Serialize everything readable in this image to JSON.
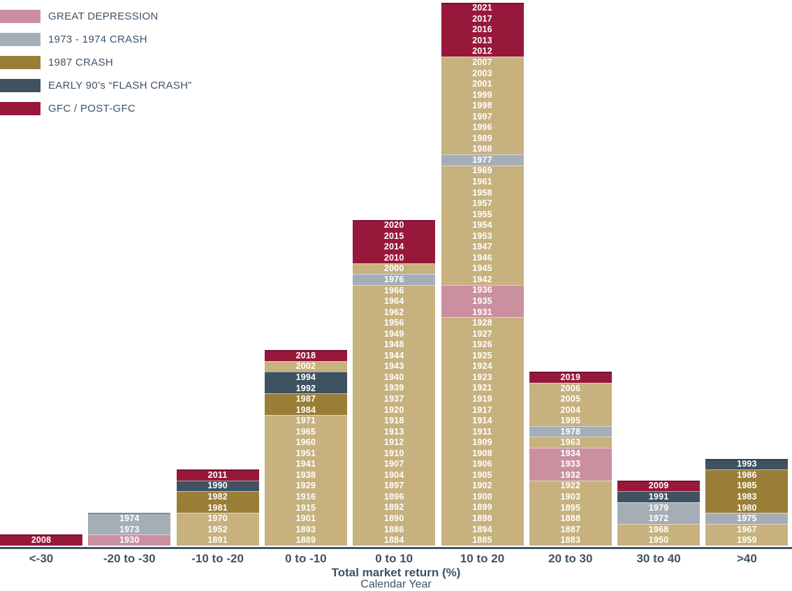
{
  "chart_data": {
    "type": "bar",
    "subtype": "stacked histogram, one cell per calendar year",
    "title": "",
    "xlabel": "Total market return (%)",
    "xlabel2": "Calendar Year",
    "ylabel": "",
    "grid": false,
    "legend_position": "top-left",
    "palette": {
      "base": "#C7B17E",
      "depression": "#CA90A0",
      "crash7374": "#A5AEB6",
      "crash87": "#9A7D37",
      "flash90s": "#3E5261",
      "gfc": "#97183A"
    },
    "text_color": "#3C5466",
    "legend": [
      {
        "key": "depression",
        "label": "GREAT DEPRESSION"
      },
      {
        "key": "crash7374",
        "label": "1973 - 1974 CRASH"
      },
      {
        "key": "crash87",
        "label": "1987 CRASH"
      },
      {
        "key": "flash90s",
        "label": "EARLY 90’s “FLASH CRASH”"
      },
      {
        "key": "gfc",
        "label": "GFC / POST-GFC"
      }
    ],
    "categories": [
      "<-30",
      "-20 to -30",
      "-10 to -20",
      "0 to -10",
      "0 to 10",
      "10 to 20",
      "20 to 30",
      "30 to 40",
      ">40"
    ],
    "columns": [
      {
        "bin": "<-30",
        "years": [
          [
            "2008",
            "gfc"
          ]
        ]
      },
      {
        "bin": "-20 to -30",
        "years": [
          [
            "1974",
            "crash7374"
          ],
          [
            "1973",
            "crash7374"
          ],
          [
            "1930",
            "depression"
          ]
        ]
      },
      {
        "bin": "-10 to -20",
        "years": [
          [
            "2011",
            "gfc"
          ],
          [
            "1990",
            "flash90s"
          ],
          [
            "1982",
            "crash87"
          ],
          [
            "1981",
            "crash87"
          ],
          [
            "1970",
            "base"
          ],
          [
            "1952",
            "base"
          ],
          [
            "1891",
            "base"
          ]
        ]
      },
      {
        "bin": "0 to -10",
        "years": [
          [
            "2018",
            "gfc"
          ],
          [
            "2002",
            "base"
          ],
          [
            "1994",
            "flash90s"
          ],
          [
            "1992",
            "flash90s"
          ],
          [
            "1987",
            "crash87"
          ],
          [
            "1984",
            "crash87"
          ],
          [
            "1971",
            "base"
          ],
          [
            "1965",
            "base"
          ],
          [
            "1960",
            "base"
          ],
          [
            "1951",
            "base"
          ],
          [
            "1941",
            "base"
          ],
          [
            "1938",
            "base"
          ],
          [
            "1929",
            "base"
          ],
          [
            "1916",
            "base"
          ],
          [
            "1915",
            "base"
          ],
          [
            "1901",
            "base"
          ],
          [
            "1893",
            "base"
          ],
          [
            "1889",
            "base"
          ]
        ]
      },
      {
        "bin": "0 to 10",
        "years": [
          [
            "2020",
            "gfc"
          ],
          [
            "2015",
            "gfc"
          ],
          [
            "2014",
            "gfc"
          ],
          [
            "2010",
            "gfc"
          ],
          [
            "2000",
            "base"
          ],
          [
            "1976",
            "crash7374"
          ],
          [
            "1966",
            "base"
          ],
          [
            "1964",
            "base"
          ],
          [
            "1962",
            "base"
          ],
          [
            "1956",
            "base"
          ],
          [
            "1949",
            "base"
          ],
          [
            "1948",
            "base"
          ],
          [
            "1944",
            "base"
          ],
          [
            "1943",
            "base"
          ],
          [
            "1940",
            "base"
          ],
          [
            "1939",
            "base"
          ],
          [
            "1937",
            "base"
          ],
          [
            "1920",
            "base"
          ],
          [
            "1918",
            "base"
          ],
          [
            "1913",
            "base"
          ],
          [
            "1912",
            "base"
          ],
          [
            "1910",
            "base"
          ],
          [
            "1907",
            "base"
          ],
          [
            "1904",
            "base"
          ],
          [
            "1897",
            "base"
          ],
          [
            "1896",
            "base"
          ],
          [
            "1892",
            "base"
          ],
          [
            "1890",
            "base"
          ],
          [
            "1886",
            "base"
          ],
          [
            "1884",
            "base"
          ]
        ]
      },
      {
        "bin": "10 to 20",
        "years": [
          [
            "2021",
            "gfc"
          ],
          [
            "2017",
            "gfc"
          ],
          [
            "2016",
            "gfc"
          ],
          [
            "2013",
            "gfc"
          ],
          [
            "2012",
            "gfc"
          ],
          [
            "2007",
            "base"
          ],
          [
            "2003",
            "base"
          ],
          [
            "2001",
            "base"
          ],
          [
            "1999",
            "base"
          ],
          [
            "1998",
            "base"
          ],
          [
            "1997",
            "base"
          ],
          [
            "1996",
            "base"
          ],
          [
            "1989",
            "base"
          ],
          [
            "1988",
            "base"
          ],
          [
            "1977",
            "crash7374"
          ],
          [
            "1969",
            "base"
          ],
          [
            "1961",
            "base"
          ],
          [
            "1958",
            "base"
          ],
          [
            "1957",
            "base"
          ],
          [
            "1955",
            "base"
          ],
          [
            "1954",
            "base"
          ],
          [
            "1953",
            "base"
          ],
          [
            "1947",
            "base"
          ],
          [
            "1946",
            "base"
          ],
          [
            "1945",
            "base"
          ],
          [
            "1942",
            "base"
          ],
          [
            "1936",
            "depression"
          ],
          [
            "1935",
            "depression"
          ],
          [
            "1931",
            "depression"
          ],
          [
            "1928",
            "base"
          ],
          [
            "1927",
            "base"
          ],
          [
            "1926",
            "base"
          ],
          [
            "1925",
            "base"
          ],
          [
            "1924",
            "base"
          ],
          [
            "1923",
            "base"
          ],
          [
            "1921",
            "base"
          ],
          [
            "1919",
            "base"
          ],
          [
            "1917",
            "base"
          ],
          [
            "1914",
            "base"
          ],
          [
            "1911",
            "base"
          ],
          [
            "1909",
            "base"
          ],
          [
            "1908",
            "base"
          ],
          [
            "1906",
            "base"
          ],
          [
            "1905",
            "base"
          ],
          [
            "1902",
            "base"
          ],
          [
            "1900",
            "base"
          ],
          [
            "1899",
            "base"
          ],
          [
            "1898",
            "base"
          ],
          [
            "1894",
            "base"
          ],
          [
            "1885",
            "base"
          ]
        ]
      },
      {
        "bin": "20 to 30",
        "years": [
          [
            "2019",
            "gfc"
          ],
          [
            "2006",
            "base"
          ],
          [
            "2005",
            "base"
          ],
          [
            "2004",
            "base"
          ],
          [
            "1995",
            "base"
          ],
          [
            "1978",
            "crash7374"
          ],
          [
            "1963",
            "base"
          ],
          [
            "1934",
            "depression"
          ],
          [
            "1933",
            "depression"
          ],
          [
            "1932",
            "depression"
          ],
          [
            "1922",
            "base"
          ],
          [
            "1903",
            "base"
          ],
          [
            "1895",
            "base"
          ],
          [
            "1888",
            "base"
          ],
          [
            "1887",
            "base"
          ],
          [
            "1883",
            "base"
          ]
        ]
      },
      {
        "bin": "30 to 40",
        "years": [
          [
            "2009",
            "gfc"
          ],
          [
            "1991",
            "flash90s"
          ],
          [
            "1979",
            "crash7374"
          ],
          [
            "1972",
            "crash7374"
          ],
          [
            "1968",
            "base"
          ],
          [
            "1950",
            "base"
          ]
        ]
      },
      {
        "bin": ">40",
        "years": [
          [
            "1993",
            "flash90s"
          ],
          [
            "1986",
            "crash87"
          ],
          [
            "1985",
            "crash87"
          ],
          [
            "1983",
            "crash87"
          ],
          [
            "1980",
            "crash87"
          ],
          [
            "1975",
            "crash7374"
          ],
          [
            "1967",
            "base"
          ],
          [
            "1959",
            "base"
          ]
        ]
      }
    ]
  }
}
